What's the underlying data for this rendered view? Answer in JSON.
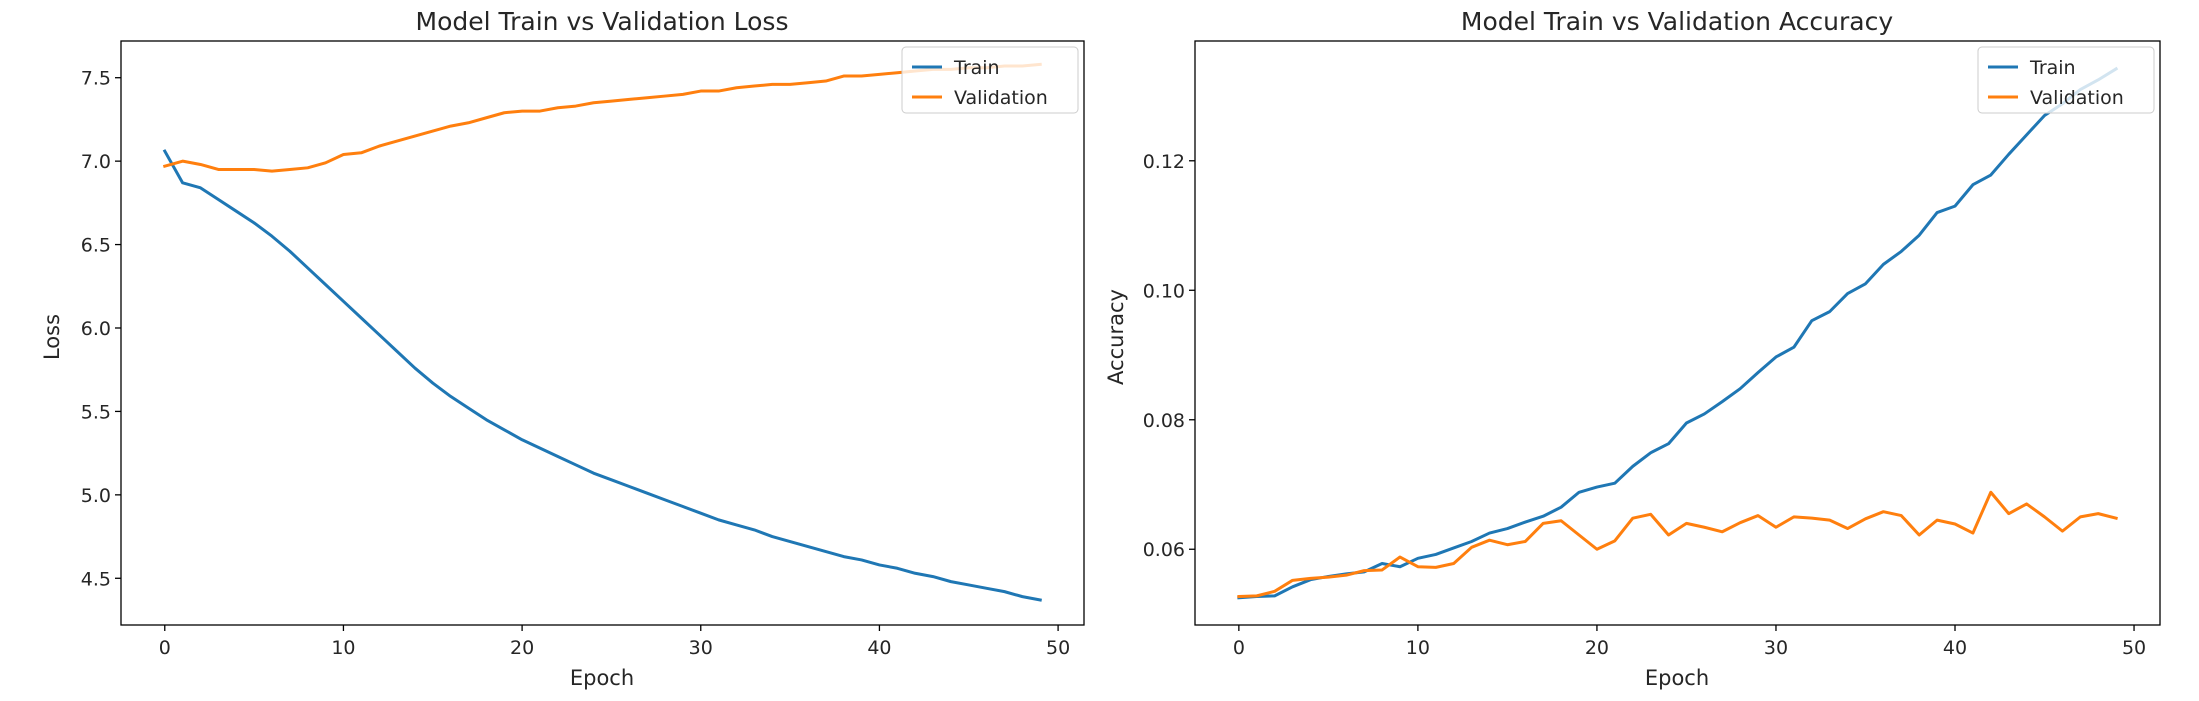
{
  "chart_data": [
    {
      "type": "line",
      "title": "Model Train vs Validation Loss",
      "xlabel": "Epoch",
      "ylabel": "Loss",
      "x": [
        0,
        1,
        2,
        3,
        4,
        5,
        6,
        7,
        8,
        9,
        10,
        11,
        12,
        13,
        14,
        15,
        16,
        17,
        18,
        19,
        20,
        21,
        22,
        23,
        24,
        25,
        26,
        27,
        28,
        29,
        30,
        31,
        32,
        33,
        34,
        35,
        36,
        37,
        38,
        39,
        40,
        41,
        42,
        43,
        44,
        45,
        46,
        47,
        48,
        49
      ],
      "series": [
        {
          "name": "Train",
          "color": "#1f77b4",
          "values": [
            7.06,
            6.87,
            6.84,
            6.77,
            6.7,
            6.63,
            6.55,
            6.46,
            6.36,
            6.26,
            6.16,
            6.06,
            5.96,
            5.86,
            5.76,
            5.67,
            5.59,
            5.52,
            5.45,
            5.39,
            5.33,
            5.28,
            5.23,
            5.18,
            5.13,
            5.09,
            5.05,
            5.01,
            4.97,
            4.93,
            4.89,
            4.85,
            4.82,
            4.79,
            4.75,
            4.72,
            4.69,
            4.66,
            4.63,
            4.61,
            4.58,
            4.56,
            4.53,
            4.51,
            4.48,
            4.46,
            4.44,
            4.42,
            4.39,
            4.37
          ]
        },
        {
          "name": "Validation",
          "color": "#ff7f0e",
          "values": [
            6.97,
            7.0,
            6.98,
            6.95,
            6.95,
            6.95,
            6.94,
            6.95,
            6.96,
            6.99,
            7.04,
            7.05,
            7.09,
            7.12,
            7.15,
            7.18,
            7.21,
            7.23,
            7.26,
            7.29,
            7.3,
            7.3,
            7.32,
            7.33,
            7.35,
            7.36,
            7.37,
            7.38,
            7.39,
            7.4,
            7.42,
            7.42,
            7.44,
            7.45,
            7.46,
            7.46,
            7.47,
            7.48,
            7.51,
            7.51,
            7.52,
            7.53,
            7.54,
            7.55,
            7.55,
            7.56,
            7.56,
            7.57,
            7.57,
            7.58
          ]
        }
      ],
      "xlim": [
        -2.45,
        51.45
      ],
      "ylim": [
        4.22,
        7.72
      ],
      "xticks": [
        0,
        10,
        20,
        30,
        40,
        50
      ],
      "yticks": [
        4.5,
        5.0,
        5.5,
        6.0,
        6.5,
        7.0,
        7.5
      ],
      "ytick_labels": [
        "4.5",
        "5.0",
        "5.5",
        "6.0",
        "6.5",
        "7.0",
        "7.5"
      ],
      "legend_position": "upper right",
      "grid": false
    },
    {
      "type": "line",
      "title": "Model Train vs Validation Accuracy",
      "xlabel": "Epoch",
      "ylabel": "Accuracy",
      "x": [
        0,
        1,
        2,
        3,
        4,
        5,
        6,
        7,
        8,
        9,
        10,
        11,
        12,
        13,
        14,
        15,
        16,
        17,
        18,
        19,
        20,
        21,
        22,
        23,
        24,
        25,
        26,
        27,
        28,
        29,
        30,
        31,
        32,
        33,
        34,
        35,
        36,
        37,
        38,
        39,
        40,
        41,
        42,
        43,
        44,
        45,
        46,
        47,
        48,
        49
      ],
      "series": [
        {
          "name": "Train",
          "color": "#1f77b4",
          "values": [
            0.0525,
            0.0527,
            0.0528,
            0.0542,
            0.0553,
            0.0558,
            0.0562,
            0.0565,
            0.0578,
            0.0573,
            0.0586,
            0.0592,
            0.0602,
            0.0612,
            0.0625,
            0.0632,
            0.0642,
            0.0651,
            0.0665,
            0.0688,
            0.0696,
            0.0702,
            0.0728,
            0.0749,
            0.0763,
            0.0795,
            0.0809,
            0.0828,
            0.0848,
            0.0873,
            0.0897,
            0.0912,
            0.0953,
            0.0967,
            0.0995,
            0.101,
            0.104,
            0.106,
            0.1085,
            0.112,
            0.113,
            0.1163,
            0.1178,
            0.121,
            0.124,
            0.127,
            0.1288,
            0.131,
            0.1325,
            0.1342
          ]
        },
        {
          "name": "Validation",
          "color": "#ff7f0e",
          "values": [
            0.0527,
            0.0528,
            0.0535,
            0.0552,
            0.0555,
            0.0557,
            0.056,
            0.0567,
            0.0568,
            0.0588,
            0.0573,
            0.0572,
            0.0578,
            0.0603,
            0.0614,
            0.0607,
            0.0612,
            0.064,
            0.0644,
            0.0622,
            0.06,
            0.0613,
            0.0648,
            0.0654,
            0.0622,
            0.064,
            0.0634,
            0.0627,
            0.0641,
            0.0652,
            0.0634,
            0.065,
            0.0648,
            0.0645,
            0.0632,
            0.0647,
            0.0658,
            0.0652,
            0.0622,
            0.0645,
            0.0639,
            0.0625,
            0.0688,
            0.0655,
            0.067,
            0.065,
            0.0628,
            0.065,
            0.0655,
            0.0648
          ]
        }
      ],
      "xlim": [
        -2.45,
        51.45
      ],
      "ylim": [
        0.0483,
        0.1385
      ],
      "xticks": [
        0,
        10,
        20,
        30,
        40,
        50
      ],
      "yticks": [
        0.06,
        0.08,
        0.1,
        0.12
      ],
      "ytick_labels": [
        "0.06",
        "0.08",
        "0.10",
        "0.12"
      ],
      "legend_position": "upper right",
      "grid": false
    }
  ]
}
